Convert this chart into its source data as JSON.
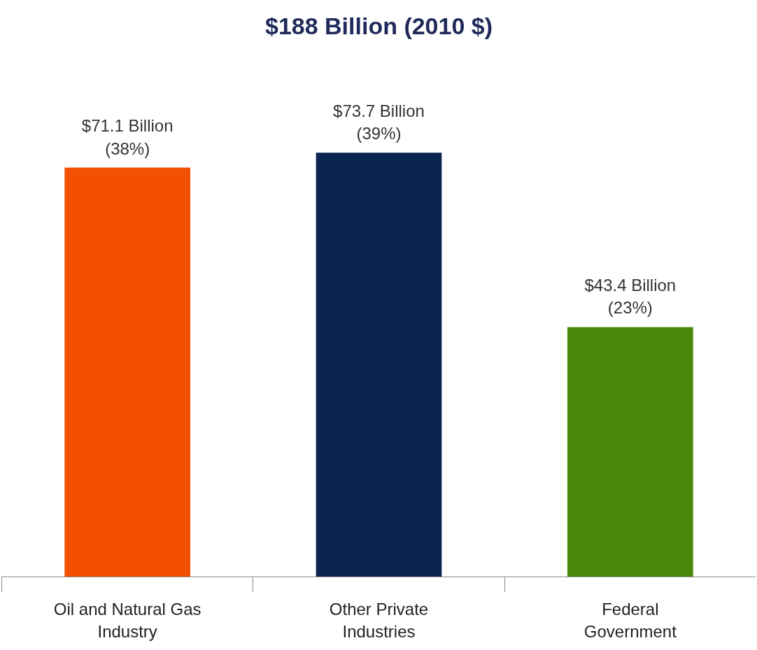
{
  "chart_data": {
    "type": "bar",
    "title": "$188 Billion (2010 $)",
    "categories": [
      "Oil and Natural Gas\nIndustry",
      "Other Private\nIndustries",
      "Federal\nGovernment"
    ],
    "values": [
      71.1,
      73.7,
      43.4
    ],
    "colors": [
      "#f25000",
      "#0c2452",
      "#4a8a0a"
    ],
    "value_labels": [
      "$71.1 Billion\n(38%)",
      "$73.7 Billion\n(39%)",
      "$43.4 Billion\n(23%)"
    ],
    "grid": false
  }
}
